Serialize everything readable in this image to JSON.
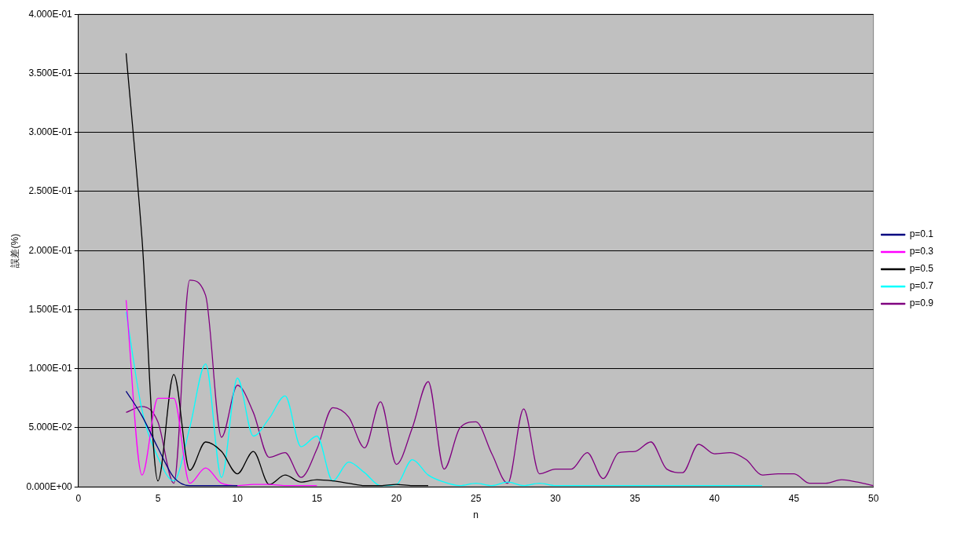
{
  "chart_data": {
    "type": "line",
    "xlabel": "n",
    "ylabel": "誤差(%)",
    "xlim": [
      0,
      50
    ],
    "xticks": [
      0,
      5,
      10,
      15,
      20,
      25,
      30,
      35,
      40,
      45,
      50
    ],
    "ylim": [
      0,
      0.4
    ],
    "yticks": [
      {
        "value": 0,
        "label": "0.000E+00"
      },
      {
        "value": 0.05,
        "label": "5.000E-02"
      },
      {
        "value": 0.1,
        "label": "1.000E-01"
      },
      {
        "value": 0.15,
        "label": "1.500E-01"
      },
      {
        "value": 0.2,
        "label": "2.000E-01"
      },
      {
        "value": 0.25,
        "label": "2.500E-01"
      },
      {
        "value": 0.3,
        "label": "3.000E-01"
      },
      {
        "value": 0.35,
        "label": "3.500E-01"
      },
      {
        "value": 0.4,
        "label": "4.000E-01"
      }
    ],
    "grid": "y",
    "legend": "right",
    "marker": "none",
    "line_style": "solid",
    "series": [
      {
        "name": "p=0.1",
        "color": "#000080",
        "x": [
          3,
          4,
          5,
          6,
          7,
          8,
          9,
          10
        ],
        "values": [
          0.081,
          0.06,
          0.033,
          0.008,
          0.001,
          0.001,
          0.001,
          0.001
        ]
      },
      {
        "name": "p=0.3",
        "color": "#ff00ff",
        "x": [
          3,
          4,
          5,
          6,
          7,
          8,
          9,
          10,
          11,
          12,
          13,
          14,
          15
        ],
        "values": [
          0.158,
          0.01,
          0.075,
          0.075,
          0.003,
          0.016,
          0.003,
          0.001,
          0.002,
          0.002,
          0.001,
          0.001,
          0.001
        ]
      },
      {
        "name": "p=0.5",
        "color": "#000000",
        "x": [
          3,
          4,
          5,
          6,
          7,
          8,
          9,
          10,
          11,
          12,
          13,
          14,
          15,
          16,
          17,
          18,
          19,
          20,
          21,
          22
        ],
        "values": [
          0.367,
          0.21,
          0.005,
          0.095,
          0.014,
          0.038,
          0.03,
          0.011,
          0.03,
          0.002,
          0.01,
          0.004,
          0.006,
          0.005,
          0.003,
          0.001,
          0.001,
          0.002,
          0.001,
          0.001
        ]
      },
      {
        "name": "p=0.7",
        "color": "#00ffff",
        "x": [
          3,
          4,
          5,
          6,
          7,
          8,
          9,
          10,
          11,
          12,
          13,
          14,
          15,
          16,
          17,
          18,
          19,
          20,
          21,
          22,
          23,
          24,
          25,
          26,
          27,
          28,
          29,
          30,
          31,
          32,
          33,
          34,
          35,
          36,
          37,
          38,
          39,
          40,
          41,
          42,
          43
        ],
        "values": [
          0.148,
          0.065,
          0.025,
          0.005,
          0.05,
          0.104,
          0.008,
          0.092,
          0.043,
          0.058,
          0.077,
          0.034,
          0.043,
          0.005,
          0.021,
          0.012,
          0.001,
          0.002,
          0.023,
          0.01,
          0.004,
          0.001,
          0.003,
          0.001,
          0.004,
          0.001,
          0.003,
          0.001,
          0.001,
          0.001,
          0.001,
          0.001,
          0.001,
          0.001,
          0.001,
          0.001,
          0.001,
          0.001,
          0.001,
          0.001,
          0.001
        ]
      },
      {
        "name": "p=0.9",
        "color": "#800080",
        "x": [
          3,
          4,
          5,
          6,
          7,
          8,
          9,
          10,
          11,
          12,
          13,
          14,
          15,
          16,
          17,
          18,
          19,
          20,
          21,
          22,
          23,
          24,
          25,
          26,
          27,
          28,
          29,
          30,
          31,
          32,
          33,
          34,
          35,
          36,
          37,
          38,
          39,
          40,
          41,
          42,
          43,
          44,
          45,
          46,
          47,
          48,
          49,
          50
        ],
        "values": [
          0.063,
          0.068,
          0.055,
          0.003,
          0.175,
          0.162,
          0.042,
          0.086,
          0.063,
          0.025,
          0.029,
          0.008,
          0.032,
          0.067,
          0.059,
          0.033,
          0.072,
          0.019,
          0.05,
          0.089,
          0.015,
          0.05,
          0.055,
          0.028,
          0.003,
          0.066,
          0.011,
          0.015,
          0.015,
          0.029,
          0.007,
          0.029,
          0.03,
          0.038,
          0.015,
          0.012,
          0.036,
          0.028,
          0.029,
          0.023,
          0.01,
          0.011,
          0.011,
          0.003,
          0.003,
          0.006,
          0.004,
          0.001
        ]
      }
    ]
  }
}
